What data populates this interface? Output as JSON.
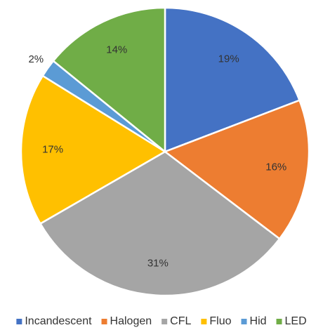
{
  "chart_data": {
    "type": "pie",
    "categories": [
      "Incandescent",
      "Halogen",
      "CFL",
      "Fluo",
      "Hid",
      "LED"
    ],
    "values": [
      19,
      16,
      31,
      17,
      2,
      14
    ],
    "value_labels": [
      "19%",
      "16%",
      "31%",
      "17%",
      "2%",
      "14%"
    ],
    "colors": [
      "#4472c4",
      "#ed7d31",
      "#a5a5a5",
      "#ffc000",
      "#5b9bd5",
      "#70ad47"
    ],
    "legend": "bottom"
  }
}
